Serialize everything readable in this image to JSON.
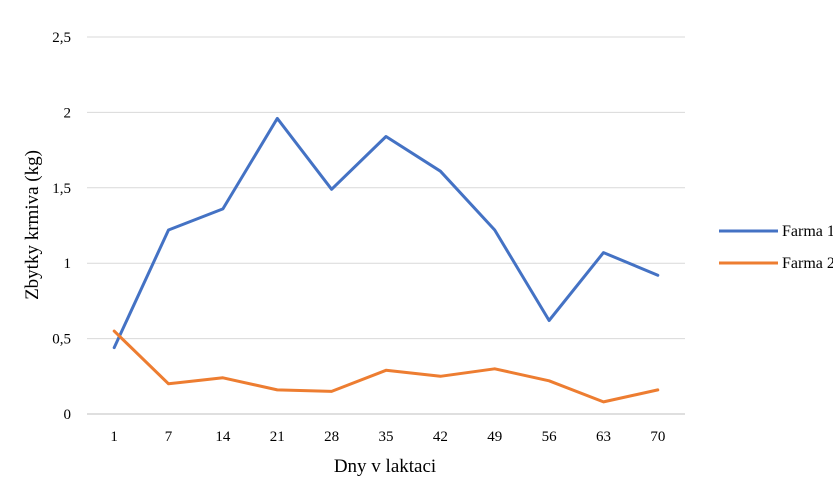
{
  "chart_data": {
    "type": "line",
    "title": "",
    "xlabel": "Dny v laktaci",
    "ylabel": "Zbytky krmiva (kg)",
    "categories": [
      "1",
      "7",
      "14",
      "21",
      "28",
      "35",
      "42",
      "49",
      "56",
      "63",
      "70"
    ],
    "yticks": [
      "0",
      "0,5",
      "1",
      "1,5",
      "2",
      "2,5"
    ],
    "ylim": [
      0,
      2.5
    ],
    "grid": true,
    "legend_position": "right",
    "series": [
      {
        "name": "Farma 1",
        "color": "#4472C4",
        "values": [
          0.44,
          1.22,
          1.36,
          1.96,
          1.49,
          1.84,
          1.61,
          1.22,
          0.62,
          1.07,
          0.92
        ]
      },
      {
        "name": "Farma 2",
        "color": "#ED7D31",
        "values": [
          0.55,
          0.2,
          0.24,
          0.16,
          0.15,
          0.29,
          0.25,
          0.3,
          0.22,
          0.08,
          0.16
        ]
      }
    ]
  }
}
